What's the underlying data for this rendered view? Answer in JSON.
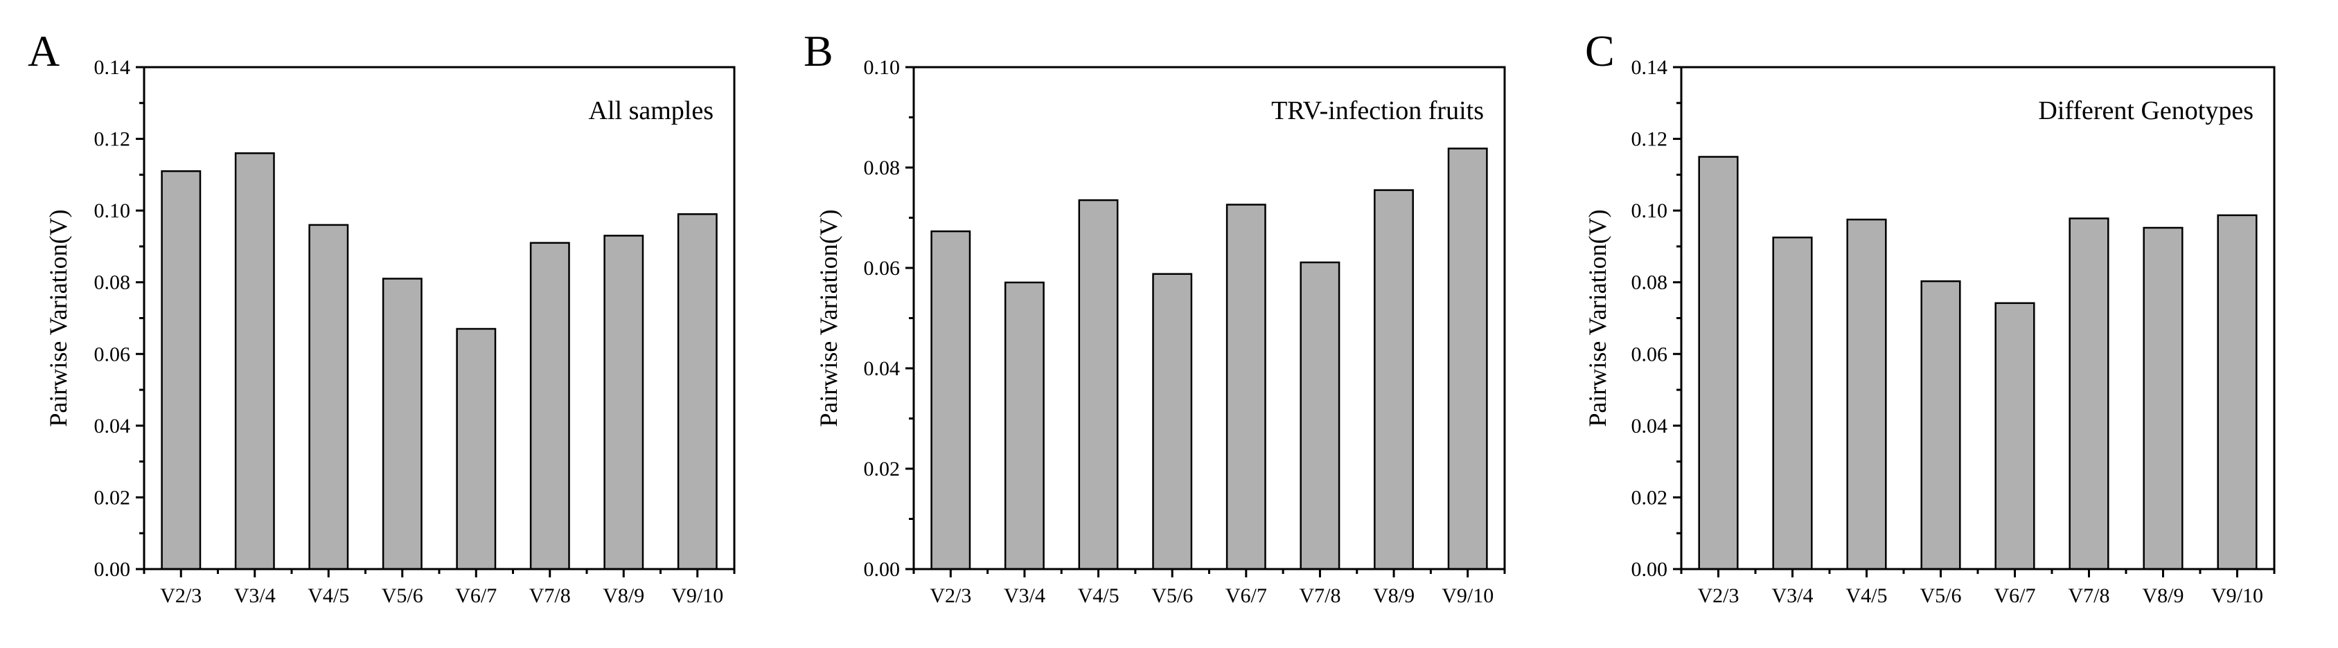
{
  "colors": {
    "bar_fill": "#b0b0b0",
    "bar_stroke": "#000000",
    "axis": "#000000",
    "background": "#ffffff"
  },
  "chart_data": [
    {
      "panel": "A",
      "type": "bar",
      "title": "All samples",
      "xlabel": "",
      "ylabel": "Pairwise Variation(V)",
      "categories": [
        "V2/3",
        "V3/4",
        "V4/5",
        "V5/6",
        "V6/7",
        "V7/8",
        "V8/9",
        "V9/10"
      ],
      "values": [
        0.111,
        0.116,
        0.096,
        0.081,
        0.067,
        0.091,
        0.093,
        0.099
      ],
      "ylim": [
        0,
        0.14
      ],
      "yticks": [
        0.0,
        0.02,
        0.04,
        0.06,
        0.08,
        0.1,
        0.12,
        0.14
      ],
      "ytick_labels": [
        "0.00",
        "0.02",
        "0.04",
        "0.06",
        "0.08",
        "0.10",
        "0.12",
        "0.14"
      ],
      "grid": false,
      "legend": "none"
    },
    {
      "panel": "B",
      "type": "bar",
      "title": "TRV-infection fruits",
      "xlabel": "",
      "ylabel": "Pairwise Variation(V)",
      "categories": [
        "V2/3",
        "V3/4",
        "V4/5",
        "V5/6",
        "V6/7",
        "V7/8",
        "V8/9",
        "V9/10"
      ],
      "values": [
        0.0673,
        0.0571,
        0.0735,
        0.0588,
        0.0726,
        0.0611,
        0.0755,
        0.0838
      ],
      "ylim": [
        0,
        0.1
      ],
      "yticks": [
        0.0,
        0.02,
        0.04,
        0.06,
        0.08,
        0.1
      ],
      "ytick_labels": [
        "0.00",
        "0.02",
        "0.04",
        "0.06",
        "0.08",
        "0.10"
      ],
      "grid": false,
      "legend": "none"
    },
    {
      "panel": "C",
      "type": "bar",
      "title": "Different Genotypes",
      "xlabel": "",
      "ylabel": "Pairwise Variation(V)",
      "categories": [
        "V2/3",
        "V3/4",
        "V4/5",
        "V5/6",
        "V6/7",
        "V7/8",
        "V8/9",
        "V9/10"
      ],
      "values": [
        0.115,
        0.0925,
        0.0975,
        0.0803,
        0.0742,
        0.0978,
        0.0952,
        0.0987
      ],
      "ylim": [
        0,
        0.14
      ],
      "yticks": [
        0.0,
        0.02,
        0.04,
        0.06,
        0.08,
        0.1,
        0.12,
        0.14
      ],
      "ytick_labels": [
        "0.00",
        "0.02",
        "0.04",
        "0.06",
        "0.08",
        "0.10",
        "0.12",
        "0.14"
      ],
      "grid": false,
      "legend": "none"
    }
  ]
}
